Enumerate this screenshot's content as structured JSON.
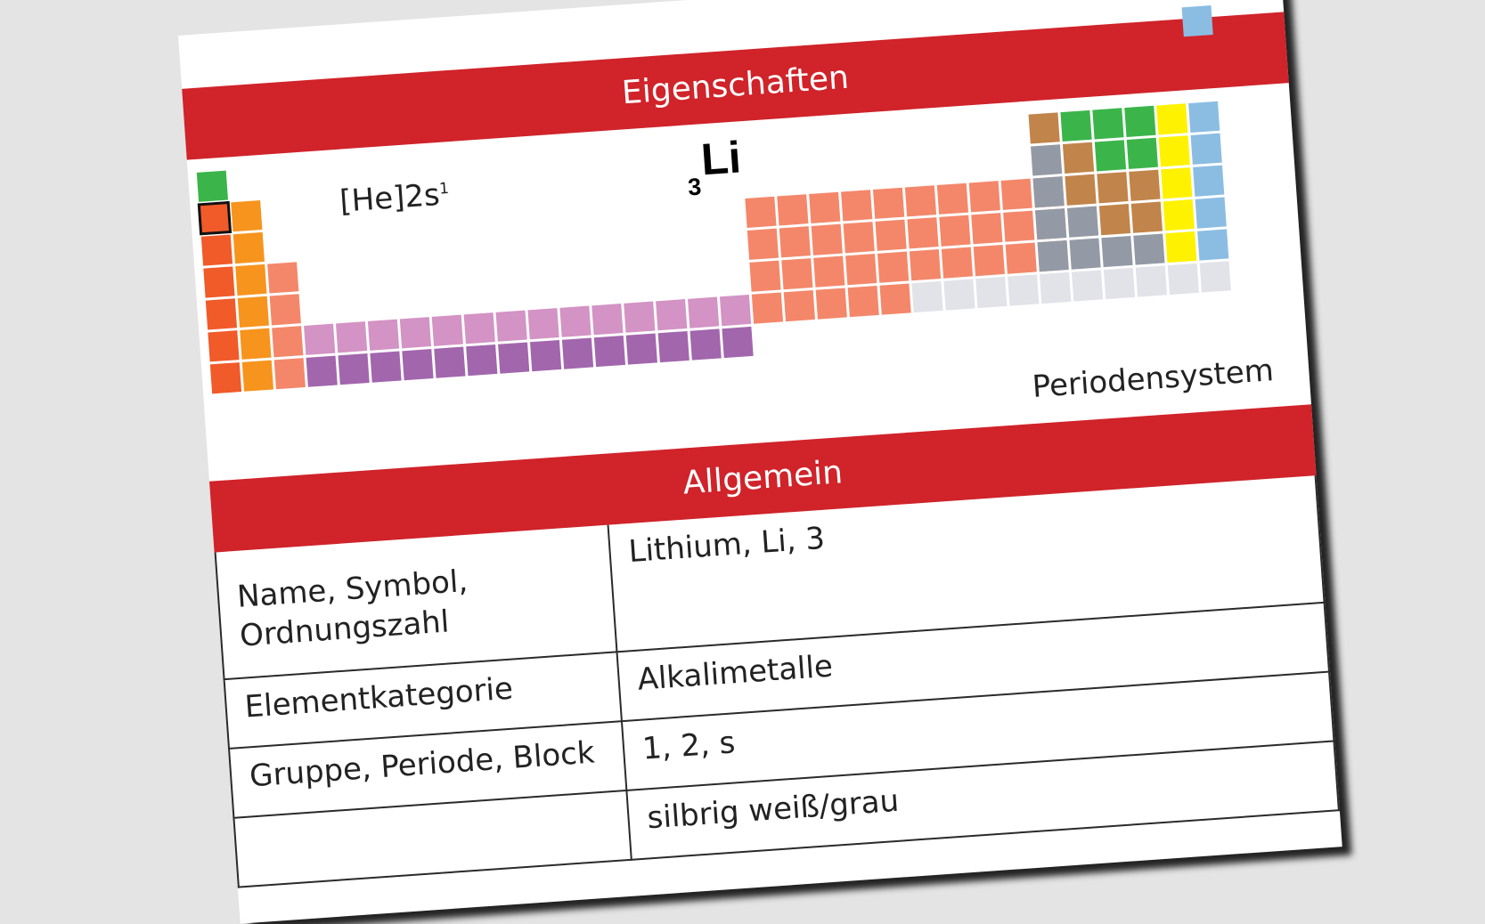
{
  "header": {
    "title": "Eigenschaften"
  },
  "element": {
    "atomic_number": "3",
    "symbol": "Li",
    "electron_config_base": "[He]2s",
    "electron_config_sup": "1"
  },
  "periodic_table": {
    "label": "Periodensystem",
    "highlighted_element": "Li",
    "colors": {
      "hydrogen": "#3bb54a",
      "alkali": "#f15a29",
      "alkaline_earth": "#f7941d",
      "transition": "#f4876a",
      "lanthanide": "#d393c4",
      "actinide": "#a266ad",
      "metalloid": "#c1844a",
      "nonmetal": "#3bb54a",
      "halogen": "#fff200",
      "noble_gas": "#8bbde3",
      "post_transition": "#939aa6",
      "unknown": "#e1e3e8"
    }
  },
  "section": {
    "title": "Allgemein"
  },
  "rows": [
    {
      "label": "Name, Symbol, Ordnungszahl",
      "value": "Lithium, Li, 3"
    },
    {
      "label": "Elementkategorie",
      "value": "Alkalimetalle"
    },
    {
      "label": "Gruppe, Periode, Block",
      "value": "1, 2, s"
    },
    {
      "label": "",
      "value": "silbrig weiß/grau"
    }
  ]
}
